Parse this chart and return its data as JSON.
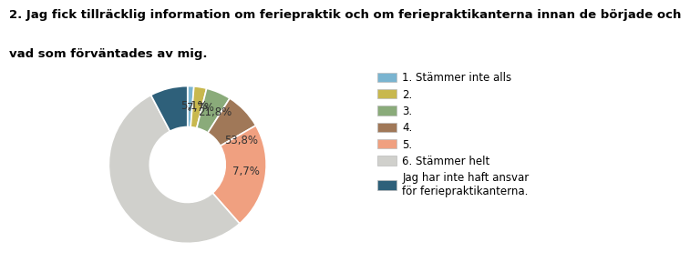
{
  "title_line1": "2. Jag fick tillräcklig information om feriepraktik och om feriepraktikanterna innan de började och",
  "title_line2": "vad som förväntades av mig.",
  "slices": [
    1.3,
    2.6,
    5.1,
    7.7,
    21.8,
    53.8,
    7.7
  ],
  "labels": [
    "",
    "",
    "5,1%",
    "7,7%",
    "21,8%",
    "53,8%",
    "7,7%"
  ],
  "colors": [
    "#7ab4d0",
    "#c8b84e",
    "#8aab7a",
    "#a07858",
    "#f0a080",
    "#d0d0cc",
    "#2e607a"
  ],
  "legend_labels": [
    "1. Stämmer inte alls",
    "2.",
    "3.",
    "4.",
    "5.",
    "6. Stämmer helt",
    "Jag har inte haft ansvar\nför feriepraktikanterna."
  ],
  "start_angle": 90,
  "title_fontsize": 9.5,
  "label_fontsize": 8.5,
  "legend_fontsize": 8.5
}
